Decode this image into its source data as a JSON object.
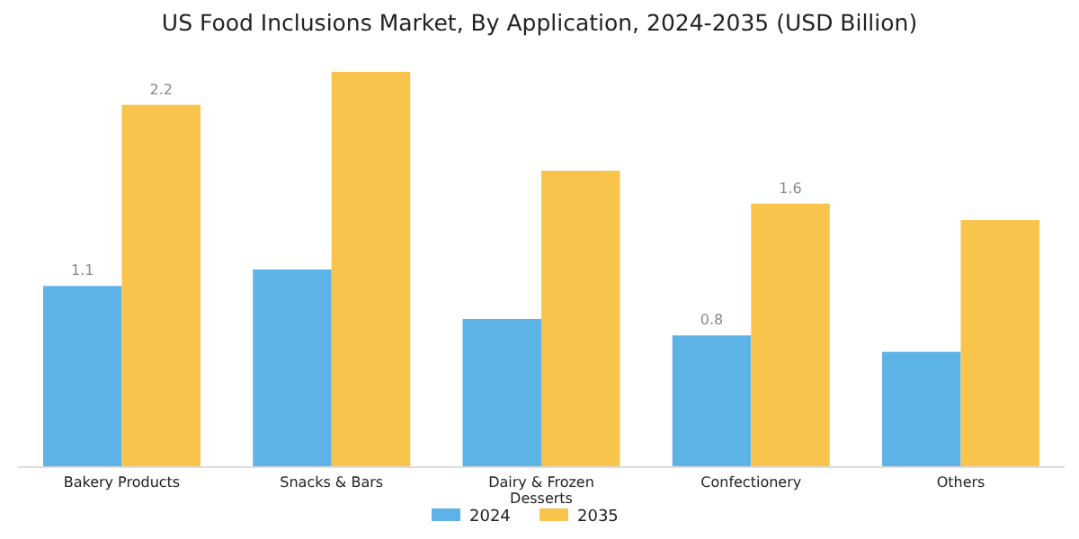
{
  "chart_data": {
    "type": "bar",
    "title": "US Food Inclusions Market, By Application, 2024-2035 (USD Billion)",
    "categories": [
      "Bakery Products",
      "Snacks & Bars",
      "Dairy & Frozen Desserts",
      "Confectionery",
      "Others"
    ],
    "series": [
      {
        "name": "2024",
        "color": "#5db3e6",
        "values": [
          1.1,
          1.2,
          0.9,
          0.8,
          0.7
        ],
        "value_labels": [
          "1.1",
          null,
          null,
          "0.8",
          null
        ]
      },
      {
        "name": "2035",
        "color": "#f9c44c",
        "values": [
          2.2,
          2.4,
          1.8,
          1.6,
          1.5
        ],
        "value_labels": [
          "2.2",
          null,
          null,
          "1.6",
          null
        ]
      }
    ],
    "legend": "bottom",
    "grid": false
  }
}
